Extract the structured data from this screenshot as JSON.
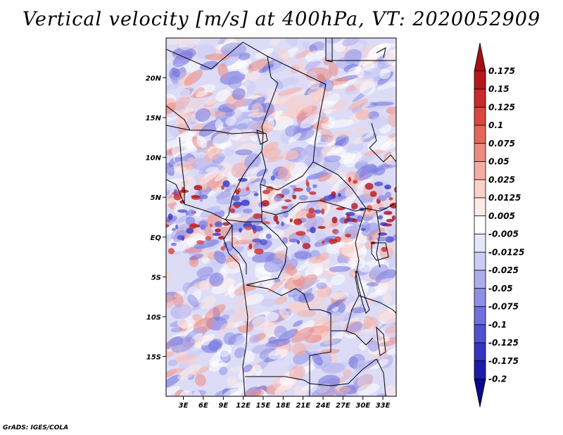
{
  "title": "Vertical velocity [m/s] at 400hPa, VT: 2020052909",
  "footer": "GrADS: IGES/COLA",
  "map": {
    "lat_labels": [
      "20N",
      "15N",
      "10N",
      "5N",
      "EQ",
      "5S",
      "10S",
      "15S"
    ],
    "lat_values": [
      20,
      15,
      10,
      5,
      0,
      -5,
      -10,
      -15
    ],
    "lon_labels": [
      "3E",
      "6E",
      "9E",
      "12E",
      "15E",
      "18E",
      "21E",
      "24E",
      "27E",
      "30E",
      "33E"
    ],
    "lon_values": [
      3,
      6,
      9,
      12,
      15,
      18,
      21,
      24,
      27,
      30,
      33
    ],
    "lon_range": [
      0.4,
      35
    ],
    "lat_range": [
      -20,
      25
    ]
  },
  "colorbar": {
    "labels": [
      "0.175",
      "0.15",
      "0.125",
      "0.1",
      "0.075",
      "0.05",
      "0.025",
      "0.0125",
      "0.005",
      "-0.005",
      "-0.0125",
      "-0.025",
      "-0.05",
      "-0.075",
      "-0.1",
      "-0.125",
      "-0.175",
      "-0.2"
    ],
    "colors": [
      "#a50f15",
      "#b6171d",
      "#c92a2a",
      "#d9473e",
      "#e4675c",
      "#ee8a7f",
      "#f5ada3",
      "#fad0c9",
      "#fdeae6",
      "#ffffff",
      "#e6e6fb",
      "#cbcbf5",
      "#adadee",
      "#8f8fe6",
      "#7070dc",
      "#5252d0",
      "#3535c0",
      "#1c1ca8",
      "#0a0a8a"
    ]
  }
}
